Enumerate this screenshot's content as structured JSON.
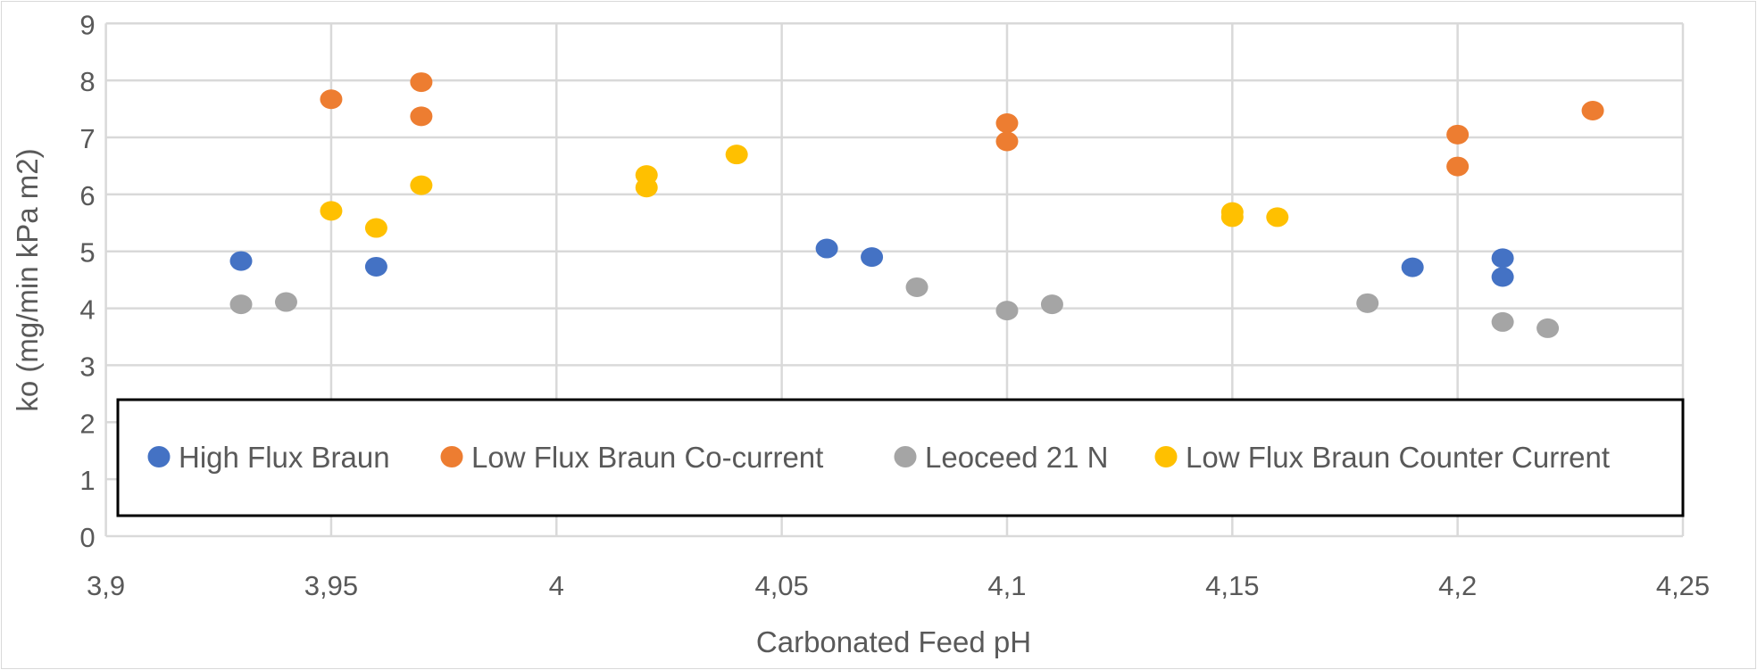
{
  "chart_data": {
    "type": "scatter",
    "title": "",
    "xlabel": "Carbonated Feed pH",
    "ylabel": "ko (mg/min kPa m2)",
    "xlim": [
      3.9,
      4.25
    ],
    "ylim": [
      0,
      9
    ],
    "x_ticks": [
      "3,9",
      "3,95",
      "4",
      "4,05",
      "4,1",
      "4,15",
      "4,2",
      "4,25"
    ],
    "x_tick_values": [
      3.9,
      3.95,
      4.0,
      4.05,
      4.1,
      4.15,
      4.2,
      4.25
    ],
    "y_ticks": [
      "0",
      "1",
      "2",
      "3",
      "4",
      "5",
      "6",
      "7",
      "8",
      "9"
    ],
    "y_tick_values": [
      0,
      1,
      2,
      3,
      4,
      5,
      6,
      7,
      8,
      9
    ],
    "grid": true,
    "legend_placement": "bottom-inside",
    "series": [
      {
        "name": "High Flux Braun",
        "color": "#4472C4",
        "points": [
          [
            3.93,
            4.83
          ],
          [
            3.96,
            4.73
          ],
          [
            4.06,
            5.05
          ],
          [
            4.07,
            4.9
          ],
          [
            4.19,
            4.72
          ],
          [
            4.21,
            4.88
          ],
          [
            4.21,
            4.55
          ]
        ]
      },
      {
        "name": "Low Flux Braun Co-current",
        "color": "#ED7D31",
        "points": [
          [
            3.95,
            7.67
          ],
          [
            3.97,
            7.97
          ],
          [
            3.97,
            7.37
          ],
          [
            4.1,
            7.25
          ],
          [
            4.1,
            6.93
          ],
          [
            4.2,
            7.05
          ],
          [
            4.2,
            6.49
          ],
          [
            4.23,
            7.47
          ]
        ]
      },
      {
        "name": "Leoceed 21 N",
        "color": "#A5A5A5",
        "points": [
          [
            3.93,
            4.07
          ],
          [
            3.94,
            4.11
          ],
          [
            4.08,
            4.37
          ],
          [
            4.1,
            3.96
          ],
          [
            4.11,
            4.07
          ],
          [
            4.18,
            4.09
          ],
          [
            4.21,
            3.76
          ],
          [
            4.22,
            3.65
          ]
        ]
      },
      {
        "name": "Low Flux Braun Counter Current",
        "color": "#FFC000",
        "points": [
          [
            3.95,
            5.71
          ],
          [
            3.96,
            5.41
          ],
          [
            3.97,
            6.16
          ],
          [
            4.02,
            6.34
          ],
          [
            4.02,
            6.12
          ],
          [
            4.04,
            6.7
          ],
          [
            4.15,
            5.69
          ],
          [
            4.15,
            5.6
          ],
          [
            4.16,
            5.6
          ]
        ]
      }
    ]
  }
}
